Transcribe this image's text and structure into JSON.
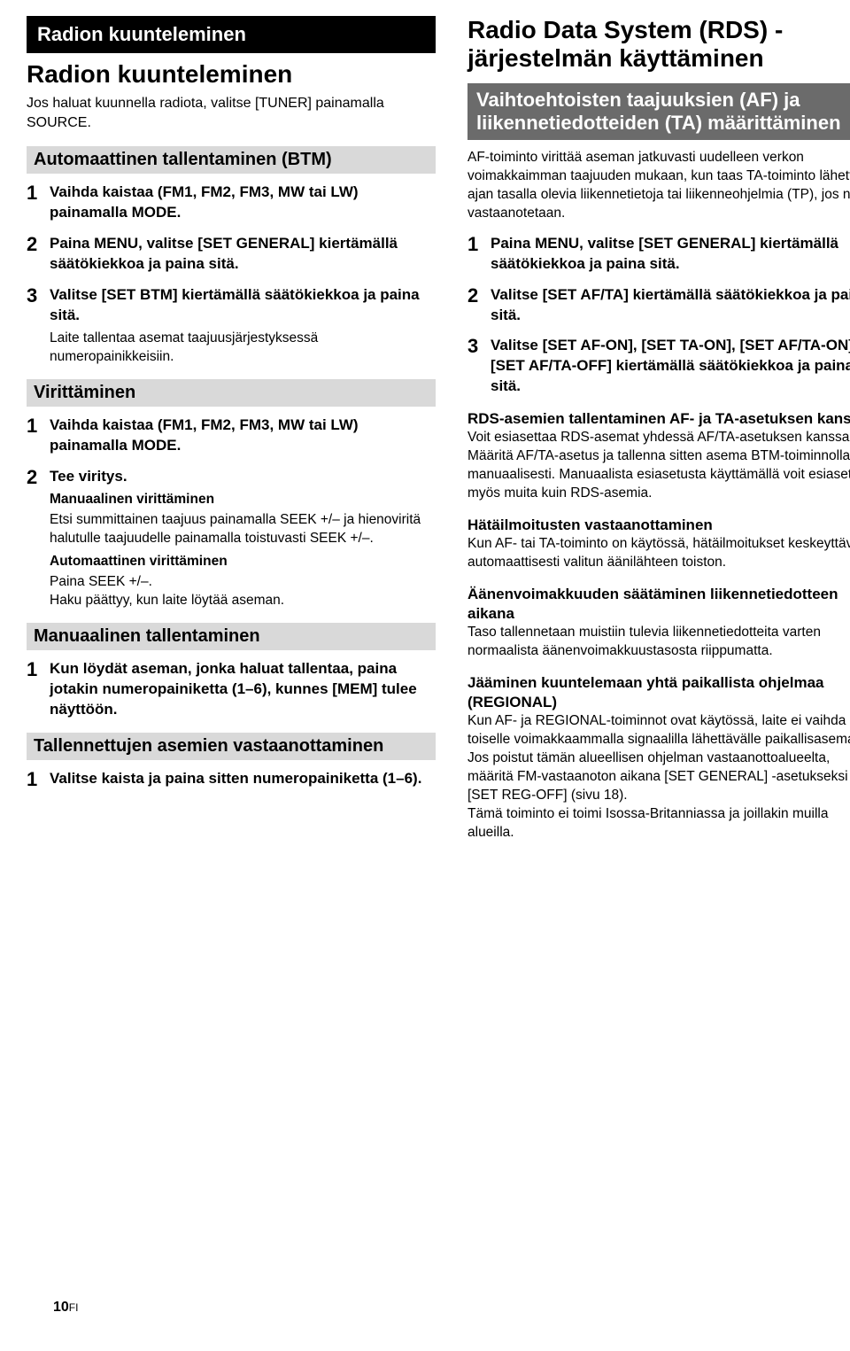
{
  "left": {
    "sectionTitle": "Radion kuunteleminen",
    "heading": "Radion kuunteleminen",
    "intro": "Jos haluat kuunnella radiota, valitse [TUNER] painamalla SOURCE.",
    "btm": {
      "title": "Automaattinen tallentaminen (BTM)",
      "steps": [
        {
          "n": "1",
          "body": "Vaihda kaistaa (FM1, FM2, FM3, MW tai LW) painamalla MODE."
        },
        {
          "n": "2",
          "body": "Paina MENU, valitse [SET GENERAL] kiertämällä säätökiekkoa ja paina sitä."
        },
        {
          "n": "3",
          "body": "Valitse [SET BTM] kiertämällä säätökiekkoa ja paina sitä.",
          "note": "Laite tallentaa asemat taajuusjärjestyksessä numeropainikkeisiin."
        }
      ]
    },
    "tuning": {
      "title": "Virittäminen",
      "steps": [
        {
          "n": "1",
          "body": "Vaihda kaistaa (FM1, FM2, FM3, MW tai LW) painamalla MODE."
        },
        {
          "n": "2",
          "body": "Tee viritys.",
          "subs": [
            {
              "head": "Manuaalinen virittäminen",
              "body": "Etsi summittainen taajuus painamalla SEEK +/– ja hienoviritä halutulle taajuudelle painamalla toistuvasti SEEK +/–."
            },
            {
              "head": "Automaattinen virittäminen",
              "body": "Paina SEEK +/–.\nHaku päättyy, kun laite löytää aseman."
            }
          ]
        }
      ]
    },
    "manualStore": {
      "title": "Manuaalinen tallentaminen",
      "steps": [
        {
          "n": "1",
          "body": "Kun löydät aseman, jonka haluat tallentaa, paina jotakin numero­painiketta (1–6), kunnes [MEM] tulee näyttöön."
        }
      ]
    },
    "receiveStored": {
      "title": "Tallennettujen asemien vastaanottaminen",
      "steps": [
        {
          "n": "1",
          "body": "Valitse kaista ja paina sitten numeropainiketta (1–6)."
        }
      ]
    }
  },
  "right": {
    "rdsTitle": "Radio Data System (RDS) -järjestelmän käyttäminen",
    "afta": {
      "title": "Vaihtoehtoisten taajuuksien (AF) ja liikennetiedotteiden (TA) määrittäminen",
      "intro": "AF-toiminto virittää aseman jatkuvasti uudelleen verkon voimakkaimman taajuuden mukaan, kun taas TA-toiminto lähettää ajan tasalla olevia liikennetietoja tai liikenneohjelmia (TP), jos niitä vastaanotetaan.",
      "steps": [
        {
          "n": "1",
          "body": "Paina MENU, valitse [SET GENERAL] kiertämällä säätökiekkoa ja paina sitä."
        },
        {
          "n": "2",
          "body": "Valitse [SET AF/TA] kiertämällä säätökiekkoa ja paina sitä."
        },
        {
          "n": "3",
          "body": "Valitse [SET AF-ON], [SET TA-ON], [SET AF/TA-ON] tai [SET AF/TA-OFF] kiertämällä säätökiekkoa ja paina sitä."
        }
      ]
    },
    "extras": [
      {
        "head": "RDS-asemien tallentaminen AF- ja TA-asetuksen kanssa",
        "body": "Voit esiasettaa RDS-asemat yhdessä AF/TA-asetuksen kanssa. Määritä AF/TA-asetus ja tallenna sitten asema BTM-toiminnolla tai manuaalisesti. Manuaalista esiasetusta käyttämällä voit esiasettaa myös muita kuin RDS-asemia."
      },
      {
        "head": "Hätäilmoitusten vastaanottaminen",
        "body": "Kun AF- tai TA-toiminto on käytössä, hätäilmoitukset keskeyttävät automaattisesti valitun äänilähteen toiston."
      },
      {
        "head": "Äänenvoimakkuuden säätäminen liikennetiedotteen aikana",
        "body": "Taso tallennetaan muistiin tulevia liikennetiedotteita varten normaalista äänenvoimakkuustasosta riippumatta."
      },
      {
        "head": "Jääminen kuuntelemaan yhtä paikallista ohjelmaa (REGIONAL)",
        "body": "Kun AF- ja REGIONAL-toiminnot ovat käytössä, laite ei vaihda toiselle voimakkaammalla signaalilla lähettävälle paikallisasemalle. Jos poistut tämän alueellisen ohjelman vastaanottoalueelta, määritä FM-vastaanoton aikana [SET GENERAL] -asetukseksi [SET REG-OFF] (sivu 18).\nTämä toiminto ei toimi Isossa-Britanniassa ja joillakin muilla alueilla."
      }
    ]
  },
  "pageNumber": "10",
  "pageNumberSuffix": "FI"
}
